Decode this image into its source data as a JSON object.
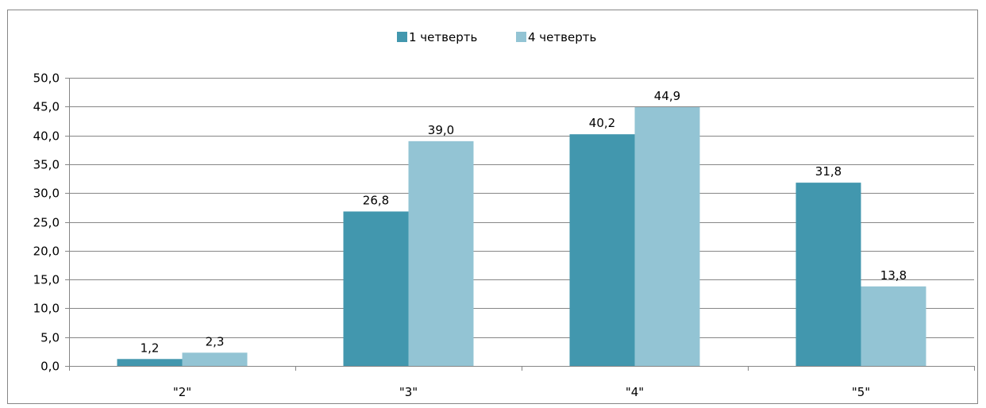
{
  "chart_data": {
    "type": "bar",
    "categories": [
      "\"2\"",
      "\"3\"",
      "\"4\"",
      "\"5\""
    ],
    "series": [
      {
        "name": "1 четверть",
        "color": "#4297AE",
        "values": [
          1.2,
          26.8,
          40.2,
          31.8
        ],
        "labels": [
          "1,2",
          "26,8",
          "40,2",
          "31,8"
        ]
      },
      {
        "name": "4 четверть",
        "color": "#93C4D4",
        "values": [
          2.3,
          39.0,
          44.9,
          13.8
        ],
        "labels": [
          "2,3",
          "39,0",
          "44,9",
          "13,8"
        ]
      }
    ],
    "ylim": [
      0,
      50
    ],
    "yticks": [
      0,
      5,
      10,
      15,
      20,
      25,
      30,
      35,
      40,
      45,
      50
    ],
    "ytick_labels": [
      "0,0",
      "5,0",
      "10,0",
      "15,0",
      "20,0",
      "25,0",
      "30,0",
      "35,0",
      "40,0",
      "45,0",
      "50,0"
    ],
    "grid": true,
    "legend_position": "top",
    "title": "",
    "xlabel": "",
    "ylabel": ""
  }
}
